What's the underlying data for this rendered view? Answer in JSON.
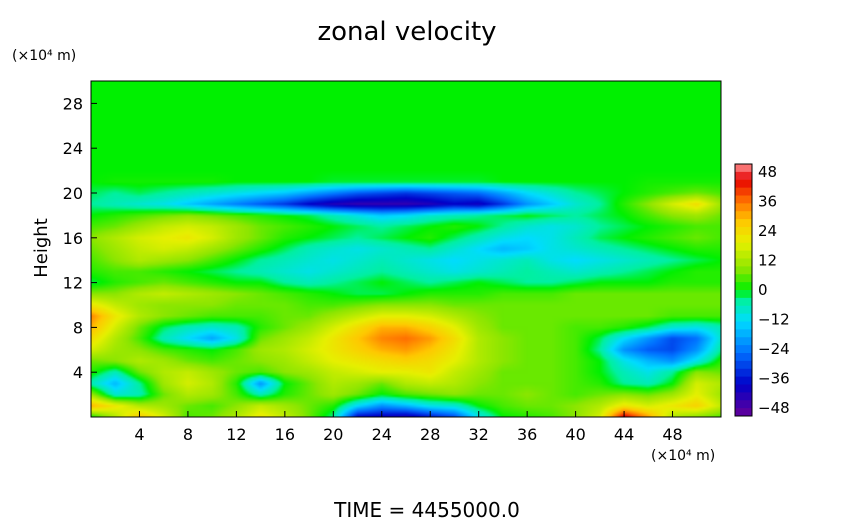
{
  "chart_data": {
    "type": "heatmap",
    "title": "zonal velocity",
    "xlabel": "",
    "ylabel": "Height",
    "x_unit": "(×10⁴ m)",
    "y_unit": "(×10⁴ m)",
    "xlim": [
      0,
      52
    ],
    "ylim": [
      0,
      30
    ],
    "x_ticks": [
      "4",
      "8",
      "12",
      "16",
      "20",
      "24",
      "28",
      "32",
      "36",
      "40",
      "44",
      "48"
    ],
    "y_ticks": [
      "4",
      "8",
      "12",
      "16",
      "20",
      "24",
      "28"
    ],
    "colorbar": {
      "range": [
        -48,
        48
      ],
      "ticks": [
        "48",
        "36",
        "24",
        "12",
        "0",
        "−12",
        "−24",
        "−36",
        "−48"
      ]
    },
    "grid": false,
    "z_unit": "zonal velocity",
    "x": [
      0,
      2,
      4,
      6,
      8,
      10,
      12,
      14,
      16,
      18,
      20,
      22,
      24,
      26,
      28,
      30,
      32,
      34,
      36,
      38,
      40,
      42,
      44,
      46,
      48,
      50,
      52
    ],
    "y": [
      0,
      1,
      2,
      3,
      4,
      5,
      6,
      7,
      8,
      9,
      10,
      11,
      12,
      13,
      14,
      15,
      16,
      17,
      18,
      19,
      20,
      21,
      22,
      23,
      24,
      25,
      26,
      27,
      28,
      29,
      30
    ],
    "z": [
      [
        0,
        12,
        26,
        16,
        4,
        6,
        12,
        20,
        14,
        6,
        -4,
        -36,
        -38,
        -40,
        -34,
        -28,
        -10,
        0,
        2,
        4,
        8,
        16,
        44,
        30,
        12,
        8,
        4
      ],
      [
        28,
        20,
        12,
        10,
        6,
        4,
        8,
        14,
        10,
        6,
        2,
        -12,
        -20,
        -16,
        -10,
        -8,
        0,
        4,
        6,
        6,
        8,
        12,
        20,
        16,
        20,
        24,
        14
      ],
      [
        10,
        -8,
        -6,
        6,
        12,
        10,
        4,
        -6,
        2,
        6,
        10,
        6,
        0,
        4,
        6,
        8,
        6,
        6,
        8,
        6,
        4,
        6,
        8,
        6,
        10,
        18,
        10
      ],
      [
        -6,
        -16,
        -4,
        10,
        16,
        12,
        2,
        -20,
        0,
        6,
        12,
        10,
        6,
        12,
        14,
        12,
        8,
        6,
        6,
        6,
        4,
        2,
        -4,
        -6,
        0,
        16,
        12
      ],
      [
        2,
        -6,
        6,
        12,
        14,
        10,
        6,
        4,
        8,
        10,
        14,
        16,
        18,
        18,
        20,
        14,
        10,
        6,
        6,
        6,
        4,
        0,
        -6,
        -10,
        -4,
        8,
        6
      ],
      [
        6,
        8,
        12,
        10,
        6,
        4,
        6,
        8,
        10,
        14,
        18,
        20,
        22,
        24,
        22,
        18,
        12,
        8,
        6,
        6,
        4,
        0,
        -10,
        -16,
        -20,
        -10,
        2
      ],
      [
        16,
        10,
        8,
        4,
        2,
        0,
        4,
        10,
        12,
        16,
        20,
        24,
        28,
        30,
        26,
        20,
        12,
        8,
        6,
        6,
        4,
        -4,
        -20,
        -26,
        -28,
        -20,
        -4
      ],
      [
        22,
        12,
        4,
        -6,
        -12,
        -18,
        -10,
        6,
        10,
        14,
        20,
        26,
        32,
        34,
        30,
        22,
        12,
        8,
        6,
        6,
        4,
        -2,
        -12,
        -20,
        -28,
        -24,
        -8
      ],
      [
        28,
        16,
        6,
        -2,
        -6,
        -8,
        -6,
        2,
        6,
        10,
        16,
        22,
        28,
        28,
        24,
        18,
        10,
        6,
        6,
        6,
        4,
        4,
        2,
        -2,
        -8,
        -10,
        -6
      ],
      [
        32,
        20,
        12,
        8,
        6,
        4,
        4,
        4,
        6,
        6,
        10,
        14,
        18,
        18,
        16,
        12,
        8,
        6,
        6,
        6,
        6,
        6,
        6,
        6,
        4,
        4,
        4
      ],
      [
        20,
        14,
        10,
        8,
        8,
        8,
        6,
        6,
        6,
        4,
        4,
        6,
        8,
        8,
        8,
        6,
        6,
        6,
        6,
        6,
        6,
        6,
        6,
        6,
        6,
        6,
        6
      ],
      [
        8,
        8,
        12,
        14,
        12,
        10,
        8,
        6,
        4,
        2,
        0,
        -2,
        -2,
        0,
        2,
        2,
        2,
        4,
        4,
        4,
        6,
        6,
        6,
        6,
        6,
        6,
        6
      ],
      [
        -2,
        2,
        4,
        6,
        4,
        2,
        0,
        0,
        -4,
        -6,
        -4,
        -2,
        0,
        -2,
        -4,
        -2,
        0,
        -2,
        -4,
        -4,
        -2,
        0,
        0,
        0,
        2,
        2,
        2
      ],
      [
        2,
        4,
        4,
        2,
        0,
        -2,
        -4,
        -6,
        -8,
        -10,
        -8,
        -6,
        -4,
        -6,
        -8,
        -10,
        -8,
        -6,
        -4,
        -6,
        -8,
        -6,
        -4,
        -2,
        0,
        2,
        2
      ],
      [
        4,
        8,
        12,
        10,
        8,
        4,
        0,
        -4,
        -6,
        -8,
        -10,
        -8,
        -6,
        -8,
        -10,
        -12,
        -10,
        -8,
        -6,
        -10,
        -12,
        -10,
        -8,
        -6,
        -4,
        -2,
        0
      ],
      [
        6,
        10,
        14,
        16,
        14,
        10,
        6,
        2,
        -2,
        -6,
        -8,
        -10,
        -8,
        -6,
        -4,
        -8,
        -12,
        -16,
        -14,
        -10,
        -8,
        -6,
        -4,
        -2,
        0,
        2,
        2
      ],
      [
        8,
        12,
        16,
        18,
        20,
        16,
        10,
        6,
        2,
        0,
        -2,
        -4,
        -2,
        0,
        2,
        -2,
        -6,
        -10,
        -12,
        -10,
        -6,
        -2,
        0,
        2,
        4,
        6,
        4
      ],
      [
        4,
        6,
        10,
        14,
        16,
        14,
        10,
        6,
        4,
        2,
        0,
        -2,
        -4,
        -2,
        0,
        2,
        0,
        -4,
        -8,
        -10,
        -8,
        -4,
        -2,
        0,
        2,
        4,
        4
      ],
      [
        0,
        2,
        4,
        6,
        8,
        6,
        4,
        2,
        0,
        -2,
        -6,
        -10,
        -14,
        -12,
        -8,
        -6,
        -4,
        -2,
        0,
        -2,
        -4,
        -2,
        0,
        4,
        8,
        10,
        6
      ],
      [
        -4,
        -6,
        -8,
        -10,
        -14,
        -18,
        -22,
        -26,
        -30,
        -36,
        -40,
        -42,
        -42,
        -42,
        -40,
        -36,
        -38,
        -30,
        -20,
        -14,
        -8,
        -4,
        2,
        8,
        16,
        22,
        10
      ],
      [
        -2,
        -4,
        -2,
        -4,
        -6,
        -8,
        -10,
        -12,
        -14,
        -18,
        -22,
        -26,
        -28,
        -30,
        -28,
        -26,
        -24,
        -18,
        -12,
        -8,
        -4,
        -2,
        0,
        2,
        4,
        6,
        4
      ],
      [
        0,
        1,
        1,
        1,
        1,
        1,
        0,
        0,
        0,
        0,
        -1,
        -1,
        -1,
        -1,
        -1,
        -1,
        -1,
        0,
        0,
        0,
        0,
        0,
        0,
        1,
        1,
        1,
        1
      ],
      [
        0,
        0,
        0,
        0,
        0,
        0,
        0,
        0,
        0,
        0,
        0,
        0,
        0,
        0,
        0,
        0,
        0,
        0,
        0,
        0,
        0,
        0,
        0,
        0,
        0,
        0,
        0
      ],
      [
        0,
        0,
        0,
        0,
        0,
        0,
        0,
        0,
        0,
        0,
        0,
        0,
        0,
        0,
        0,
        0,
        0,
        0,
        0,
        0,
        0,
        0,
        0,
        0,
        0,
        0,
        0
      ],
      [
        0,
        0,
        0,
        0,
        0,
        0,
        0,
        0,
        0,
        0,
        0,
        0,
        0,
        0,
        0,
        0,
        0,
        0,
        0,
        0,
        0,
        0,
        0,
        0,
        0,
        0,
        0
      ],
      [
        0,
        0,
        0,
        0,
        0,
        0,
        0,
        0,
        0,
        0,
        0,
        0,
        0,
        0,
        0,
        0,
        0,
        0,
        0,
        0,
        0,
        0,
        0,
        0,
        0,
        0,
        0
      ],
      [
        0,
        0,
        0,
        0,
        0,
        0,
        0,
        0,
        0,
        0,
        0,
        0,
        0,
        0,
        0,
        0,
        0,
        0,
        0,
        0,
        0,
        0,
        0,
        0,
        0,
        0,
        0
      ],
      [
        0,
        0,
        0,
        0,
        0,
        0,
        0,
        0,
        0,
        0,
        0,
        0,
        0,
        0,
        0,
        0,
        0,
        0,
        0,
        0,
        0,
        0,
        0,
        0,
        0,
        0,
        0
      ],
      [
        0,
        0,
        0,
        0,
        0,
        0,
        0,
        0,
        0,
        0,
        0,
        0,
        0,
        0,
        0,
        0,
        0,
        0,
        0,
        0,
        0,
        0,
        0,
        0,
        0,
        0,
        0
      ],
      [
        0,
        0,
        0,
        0,
        0,
        0,
        0,
        0,
        0,
        0,
        0,
        0,
        0,
        0,
        0,
        0,
        0,
        0,
        0,
        0,
        0,
        0,
        0,
        0,
        0,
        0,
        0
      ],
      [
        0,
        0,
        0,
        0,
        0,
        0,
        0,
        0,
        0,
        0,
        0,
        0,
        0,
        0,
        0,
        0,
        0,
        0,
        0,
        0,
        0,
        0,
        0,
        0,
        0,
        0,
        0
      ]
    ]
  },
  "footer": {
    "time_label": "TIME  =  4455000.0"
  }
}
